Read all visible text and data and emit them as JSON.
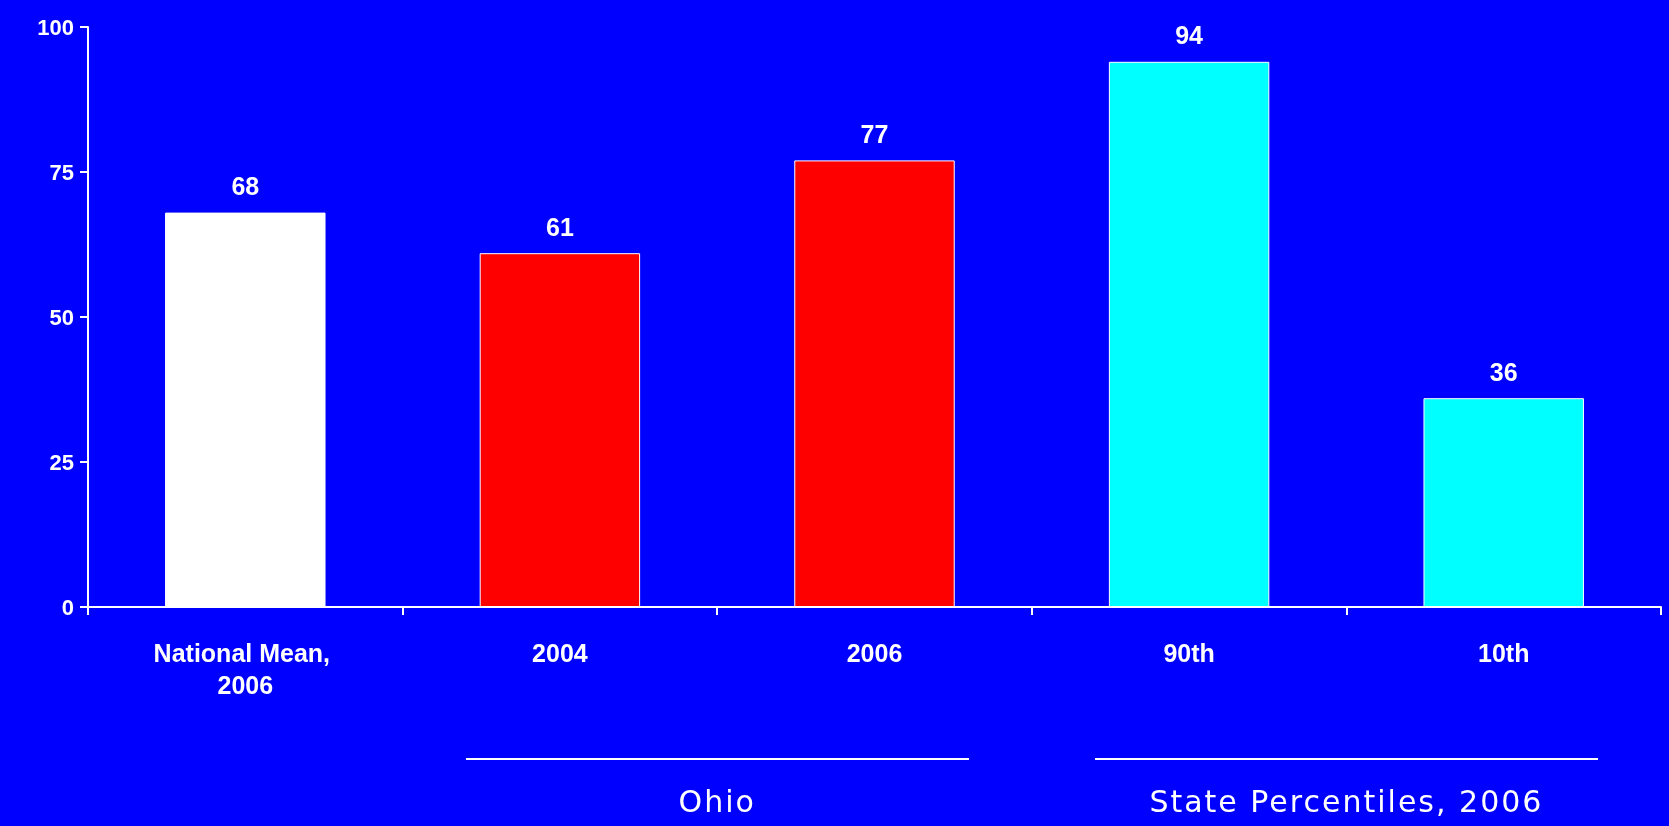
{
  "chart_data": {
    "type": "bar",
    "categories": [
      "National Mean, 2006",
      "2004",
      "2006",
      "90th",
      "10th"
    ],
    "values": [
      68,
      61,
      77,
      94,
      36
    ],
    "colors": [
      "#ffffff",
      "#ff0000",
      "#ff0000",
      "#00ffff",
      "#00ffff"
    ],
    "ylim": [
      0,
      100
    ],
    "yticks": [
      0,
      25,
      50,
      75,
      100
    ],
    "data_labels": true,
    "annotations": [
      "Ohio",
      "State Percentiles, 2006"
    ]
  }
}
